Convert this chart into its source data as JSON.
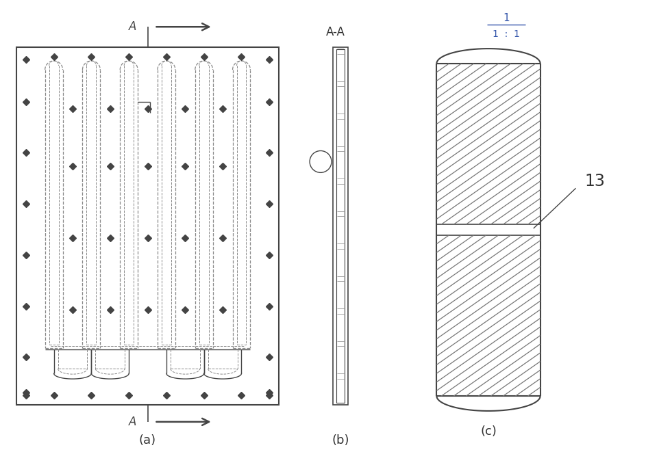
{
  "bg_color": "#ffffff",
  "line_color": "#444444",
  "dashed_color": "#888888",
  "label_color": "#333333",
  "figsize": [
    9.43,
    6.8
  ],
  "dpi": 100,
  "panel_a_label": "(a)",
  "panel_b_label": "(b)",
  "panel_c_label": "(c)",
  "section_label": "A-A",
  "scale_top": "1",
  "scale_bottom": "1  :  1",
  "annotation_13": "13",
  "A_label": "A",
  "arrow_color": "#333333"
}
